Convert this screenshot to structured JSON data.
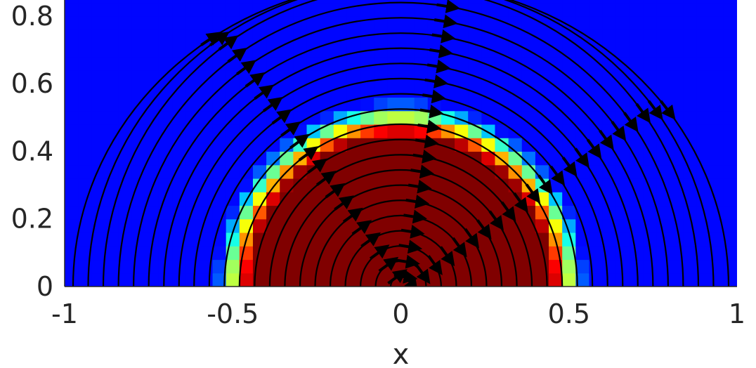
{
  "chart_data": {
    "type": "heatmap",
    "title": "",
    "xlabel": "x",
    "ylabel": "",
    "xlim": [
      -1,
      1
    ],
    "ylim": [
      0,
      0.86
    ],
    "x_ticks": [
      -1,
      -0.5,
      0,
      0.5,
      1
    ],
    "x_tick_labels": [
      "-1",
      "-0.5",
      "0",
      "0.5",
      "1"
    ],
    "y_ticks": [
      0,
      0.2,
      0.4,
      0.6,
      0.8
    ],
    "y_tick_labels": [
      "0",
      "0.2",
      "0.4",
      "0.6",
      "0.8"
    ],
    "colormap": "jet",
    "value_range": [
      0,
      1
    ],
    "field": {
      "description_of_shape": "semicircular region of value 1 centered at x=0, radius about 0.45, with a smooth transition to 0 over about 0.1",
      "center_x": 0,
      "center_y": 0,
      "radius": 0.45,
      "transition_width": 0.1,
      "cell_size": 0.04
    },
    "overlay": {
      "type": "streamlines",
      "color": "#000000",
      "pattern": "concentric arcs around origin, clockwise flow with arrows"
    },
    "grid": false,
    "legend": "none"
  }
}
